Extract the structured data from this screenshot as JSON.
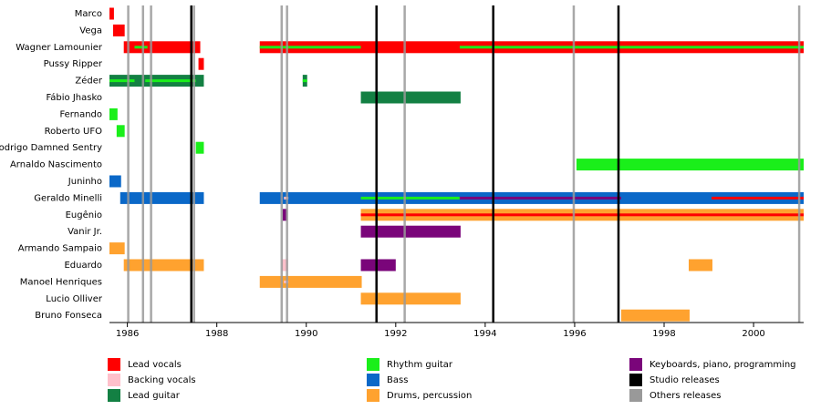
{
  "chart_data": {
    "type": "timeline",
    "xlim": [
      1985.6,
      2001.12
    ],
    "xticks": [
      1986,
      1988,
      1990,
      1992,
      1994,
      1996,
      1998,
      2000
    ],
    "series": [
      {
        "name": "Lead vocals",
        "color": "#ff0000"
      },
      {
        "name": "Backing vocals",
        "color": "#ffc0cb"
      },
      {
        "name": "Lead guitar",
        "color": "#138043"
      },
      {
        "name": "Rhythm guitar",
        "color": "#1aef1a"
      },
      {
        "name": "Bass",
        "color": "#0a68c8"
      },
      {
        "name": "Drums, percussion",
        "color": "#ffa22f"
      },
      {
        "name": "Keyboards, piano, programming",
        "color": "#7a057a"
      }
    ],
    "releases": [
      {
        "name": "Studio releases",
        "color": "#000000",
        "x": [
          1987.43,
          1991.57,
          1994.18,
          1996.98
        ]
      },
      {
        "name": "Others releases",
        "color": "#999999",
        "x": [
          1986.02,
          1986.35,
          1986.53,
          1987.49,
          1989.45,
          1989.57,
          1992.2,
          1995.98,
          2001.02
        ]
      }
    ],
    "rows": [
      {
        "name": "Marco",
        "periods": [
          {
            "role": "Lead vocals",
            "start": 1985.6,
            "end": 1985.7
          }
        ],
        "overlays": []
      },
      {
        "name": "Vega",
        "periods": [
          {
            "role": "Lead vocals",
            "start": 1985.68,
            "end": 1985.94
          }
        ],
        "overlays": []
      },
      {
        "name": "Wagner Lamounier",
        "periods": [
          {
            "role": "Lead vocals",
            "start": 1985.92,
            "end": 1987.63
          },
          {
            "role": "Lead vocals",
            "start": 1988.96,
            "end": 2001.12
          }
        ],
        "overlays": [
          {
            "role": "Rhythm guitar",
            "start": 1986.16,
            "end": 1986.45
          },
          {
            "role": "Rhythm guitar",
            "start": 1988.96,
            "end": 1991.22
          },
          {
            "role": "Rhythm guitar",
            "start": 1993.43,
            "end": 2001.12
          }
        ]
      },
      {
        "name": "Pussy Ripper",
        "periods": [
          {
            "role": "Lead vocals",
            "start": 1987.59,
            "end": 1987.71
          }
        ],
        "overlays": []
      },
      {
        "name": "Zéder",
        "periods": [
          {
            "role": "Lead guitar",
            "start": 1985.6,
            "end": 1987.71
          },
          {
            "role": "Lead guitar",
            "start": 1989.92,
            "end": 1990.02
          }
        ],
        "overlays": [
          {
            "role": "Rhythm guitar",
            "start": 1985.6,
            "end": 1986.16
          },
          {
            "role": "Rhythm guitar",
            "start": 1986.4,
            "end": 1987.53
          },
          {
            "role": "Rhythm guitar",
            "start": 1989.92,
            "end": 1990.02
          }
        ]
      },
      {
        "name": "Fábio Jhasko",
        "periods": [
          {
            "role": "Lead guitar",
            "start": 1991.22,
            "end": 1993.45
          }
        ],
        "overlays": []
      },
      {
        "name": "Fernando",
        "periods": [
          {
            "role": "Rhythm guitar",
            "start": 1985.6,
            "end": 1985.78
          }
        ],
        "overlays": []
      },
      {
        "name": "Roberto UFO",
        "periods": [
          {
            "role": "Rhythm guitar",
            "start": 1985.76,
            "end": 1985.94
          }
        ],
        "overlays": []
      },
      {
        "name": "Rodrigo Damned Sentry",
        "periods": [
          {
            "role": "Rhythm guitar",
            "start": 1987.53,
            "end": 1987.71
          }
        ],
        "overlays": []
      },
      {
        "name": "Arnaldo Nascimento",
        "periods": [
          {
            "role": "Rhythm guitar",
            "start": 1996.04,
            "end": 2001.12
          }
        ],
        "overlays": []
      },
      {
        "name": "Juninho",
        "periods": [
          {
            "role": "Bass",
            "start": 1985.6,
            "end": 1985.86
          }
        ],
        "overlays": []
      },
      {
        "name": "Geraldo Minelli",
        "periods": [
          {
            "role": "Bass",
            "start": 1985.84,
            "end": 1987.71
          },
          {
            "role": "Bass",
            "start": 1988.96,
            "end": 2001.12
          }
        ],
        "overlays": [
          {
            "role": "Backing vocals",
            "start": 1989.5,
            "end": 1989.6
          },
          {
            "role": "Rhythm guitar",
            "start": 1991.22,
            "end": 1993.43
          },
          {
            "role": "Keyboards, piano, programming",
            "start": 1993.43,
            "end": 1997.04
          },
          {
            "role": "Lead vocals",
            "start": 1999.06,
            "end": 2001.12
          }
        ]
      },
      {
        "name": "Eugênio",
        "periods": [
          {
            "role": "Keyboards, piano, programming",
            "start": 1989.47,
            "end": 1989.57
          },
          {
            "role": "Drums, percussion",
            "start": 1991.22,
            "end": 2001.12
          }
        ],
        "overlays": [
          {
            "role": "Lead vocals",
            "start": 1991.22,
            "end": 2001.12
          }
        ]
      },
      {
        "name": "Vanir Jr.",
        "periods": [
          {
            "role": "Keyboards, piano, programming",
            "start": 1991.22,
            "end": 1993.45
          }
        ],
        "overlays": []
      },
      {
        "name": "Armando Sampaio",
        "periods": [
          {
            "role": "Drums, percussion",
            "start": 1985.6,
            "end": 1985.94
          }
        ],
        "overlays": []
      },
      {
        "name": "Eduardo",
        "periods": [
          {
            "role": "Drums, percussion",
            "start": 1985.92,
            "end": 1987.71
          },
          {
            "role": "Backing vocals",
            "start": 1989.45,
            "end": 1989.59
          },
          {
            "role": "Keyboards, piano, programming",
            "start": 1991.22,
            "end": 1992.0
          },
          {
            "role": "Drums, percussion",
            "start": 1998.55,
            "end": 1999.08
          }
        ],
        "overlays": []
      },
      {
        "name": "Manoel Henriques",
        "periods": [
          {
            "role": "Drums, percussion",
            "start": 1988.96,
            "end": 1991.24
          }
        ],
        "overlays": [
          {
            "role": "Backing vocals",
            "start": 1989.5,
            "end": 1989.6
          }
        ]
      },
      {
        "name": "Lucio Olliver",
        "periods": [
          {
            "role": "Drums, percussion",
            "start": 1991.22,
            "end": 1993.45
          }
        ],
        "overlays": []
      },
      {
        "name": "Bruno Fonseca",
        "periods": [
          {
            "role": "Drums, percussion",
            "start": 1997.04,
            "end": 1998.57
          }
        ],
        "overlays": []
      }
    ]
  }
}
